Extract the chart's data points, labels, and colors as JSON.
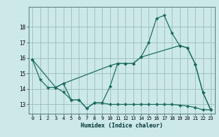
{
  "xlabel": "Humidex (Indice chaleur)",
  "background_color": "#cce8e8",
  "grid_color": "#99bbbb",
  "line_color": "#1a6b5a",
  "xlim": [
    -0.5,
    23.5
  ],
  "ylim": [
    12.4,
    19.3
  ],
  "xticks": [
    0,
    1,
    2,
    3,
    4,
    5,
    6,
    7,
    8,
    9,
    10,
    11,
    12,
    13,
    14,
    15,
    16,
    17,
    18,
    19,
    20,
    21,
    22,
    23
  ],
  "yticks": [
    13,
    14,
    15,
    16,
    17,
    18
  ],
  "line1_x": [
    0,
    1,
    2,
    3,
    4,
    5,
    6,
    7,
    8,
    9,
    10,
    11,
    12,
    13,
    14,
    15,
    16,
    17,
    18,
    19,
    20,
    21,
    22,
    23
  ],
  "line1_y": [
    15.9,
    14.6,
    14.1,
    14.1,
    13.8,
    13.3,
    13.3,
    12.75,
    13.1,
    13.1,
    14.15,
    15.65,
    15.65,
    15.65,
    16.05,
    17.0,
    18.55,
    18.75,
    17.6,
    16.8,
    16.65,
    15.6,
    13.75,
    12.65
  ],
  "line2_x": [
    0,
    3,
    4,
    10,
    11,
    12,
    13,
    14,
    19,
    20,
    21,
    22,
    23
  ],
  "line2_y": [
    15.9,
    14.1,
    14.35,
    15.5,
    15.65,
    15.65,
    15.65,
    16.05,
    16.8,
    16.65,
    15.6,
    13.75,
    12.65
  ],
  "line3_x": [
    3,
    4,
    5,
    6,
    7,
    8,
    9,
    10,
    11,
    12,
    13,
    14,
    15,
    16,
    17,
    18,
    19,
    20,
    21,
    22,
    23
  ],
  "line3_y": [
    14.1,
    14.35,
    13.3,
    13.3,
    12.75,
    13.1,
    13.1,
    13.0,
    13.0,
    13.0,
    13.0,
    13.0,
    13.0,
    13.0,
    13.0,
    13.0,
    12.95,
    12.9,
    12.8,
    12.65,
    12.65
  ]
}
